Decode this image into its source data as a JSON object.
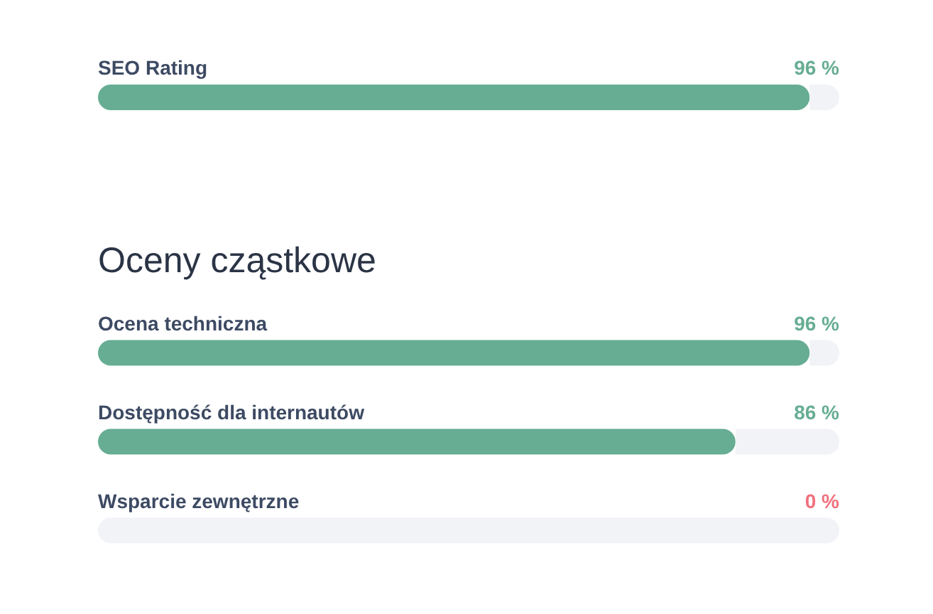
{
  "chart_data": [
    {
      "type": "bar",
      "orientation": "horizontal",
      "stacked": true,
      "categories": [
        "SEO Rating"
      ],
      "series": [
        {
          "values": [
            96
          ],
          "color": "#66ad93",
          "value_labels": [
            "96 %"
          ]
        },
        {
          "values": [
            4
          ],
          "color": "#f1f3f7"
        }
      ],
      "xlim": [
        0,
        100
      ],
      "tick_labels": "y"
    },
    {
      "type": "bar",
      "orientation": "horizontal",
      "stacked": true,
      "title": "Oceny cząstkowe",
      "categories": [
        "Ocena techniczna",
        "Dostępność dla internautów",
        "Wsparcie zewnętrzne"
      ],
      "series": [
        {
          "values": [
            96,
            86,
            0
          ],
          "colors": [
            "#66ad93",
            "#66ad93",
            "#f0707c"
          ],
          "value_labels": [
            "96 %",
            "86 %",
            "0 %"
          ]
        },
        {
          "values": [
            4,
            14,
            100
          ],
          "color": "#f1f3f7"
        }
      ],
      "xlim": [
        0,
        100
      ],
      "tick_labels": "y"
    }
  ]
}
